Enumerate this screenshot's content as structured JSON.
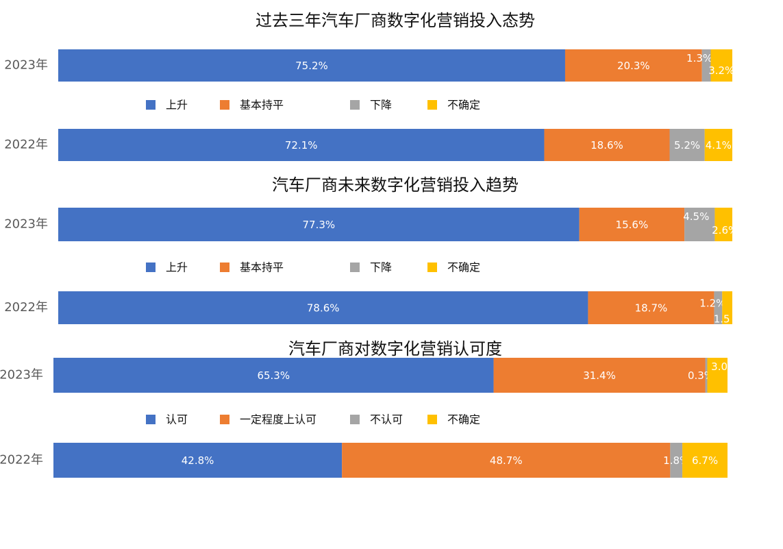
{
  "chart_data": [
    {
      "type": "bar",
      "orientation": "horizontal",
      "stacked": "percent",
      "title": "过去三年汽车厂商数字化营销投入态势",
      "categories": [
        "2023年",
        "2022年"
      ],
      "series": [
        {
          "name": "上升",
          "values": [
            75.2,
            72.1
          ],
          "labels": [
            "75.2%",
            "72.1%"
          ],
          "color": "#4472C4"
        },
        {
          "name": "基本持平",
          "values": [
            20.3,
            18.6
          ],
          "labels": [
            "20.3%",
            "18.6%"
          ],
          "color": "#ED7D31"
        },
        {
          "name": "下降",
          "values": [
            1.3,
            5.2
          ],
          "labels": [
            "1.3%",
            "5.2%"
          ],
          "color": "#A5A5A5"
        },
        {
          "name": "不确定",
          "values": [
            3.2,
            4.1
          ],
          "labels": [
            "3.2%",
            "4.1%"
          ],
          "color": "#FFC000"
        }
      ],
      "legend_position": "middle",
      "grid": false
    },
    {
      "type": "bar",
      "orientation": "horizontal",
      "stacked": "percent",
      "title": "汽车厂商未来数字化营销投入趋势",
      "categories": [
        "2023年",
        "2022年"
      ],
      "series": [
        {
          "name": "上升",
          "values": [
            77.3,
            78.6
          ],
          "labels": [
            "77.3%",
            "78.6%"
          ],
          "color": "#4472C4"
        },
        {
          "name": "基本持平",
          "values": [
            15.6,
            18.7
          ],
          "labels": [
            "15.6%",
            "18.7%"
          ],
          "color": "#ED7D31"
        },
        {
          "name": "下降",
          "values": [
            4.5,
            1.2
          ],
          "labels": [
            "4.5%",
            "1.2%"
          ],
          "color": "#A5A5A5"
        },
        {
          "name": "不确定",
          "values": [
            2.6,
            1.5
          ],
          "labels": [
            "2.6%",
            "1.5"
          ],
          "color": "#FFC000"
        }
      ],
      "legend_position": "middle",
      "grid": false
    },
    {
      "type": "bar",
      "orientation": "horizontal",
      "stacked": "percent",
      "title": "汽车厂商对数字化营销认可度",
      "categories": [
        "2023年",
        "2022年"
      ],
      "series": [
        {
          "name": "认可",
          "values": [
            65.3,
            42.8
          ],
          "labels": [
            "65.3%",
            "42.8%"
          ],
          "color": "#4472C4"
        },
        {
          "name": "一定程度上认可",
          "values": [
            31.4,
            48.7
          ],
          "labels": [
            "31.4%",
            "48.7%"
          ],
          "color": "#ED7D31"
        },
        {
          "name": "不认可",
          "values": [
            0.3,
            1.8
          ],
          "labels": [
            "0.3%",
            "1.8%"
          ],
          "color": "#A5A5A5"
        },
        {
          "name": "不确定",
          "values": [
            3.0,
            6.7
          ],
          "labels": [
            "3.0%",
            "6.7%"
          ],
          "color": "#FFC000"
        }
      ],
      "legend_position": "middle",
      "grid": false
    }
  ]
}
